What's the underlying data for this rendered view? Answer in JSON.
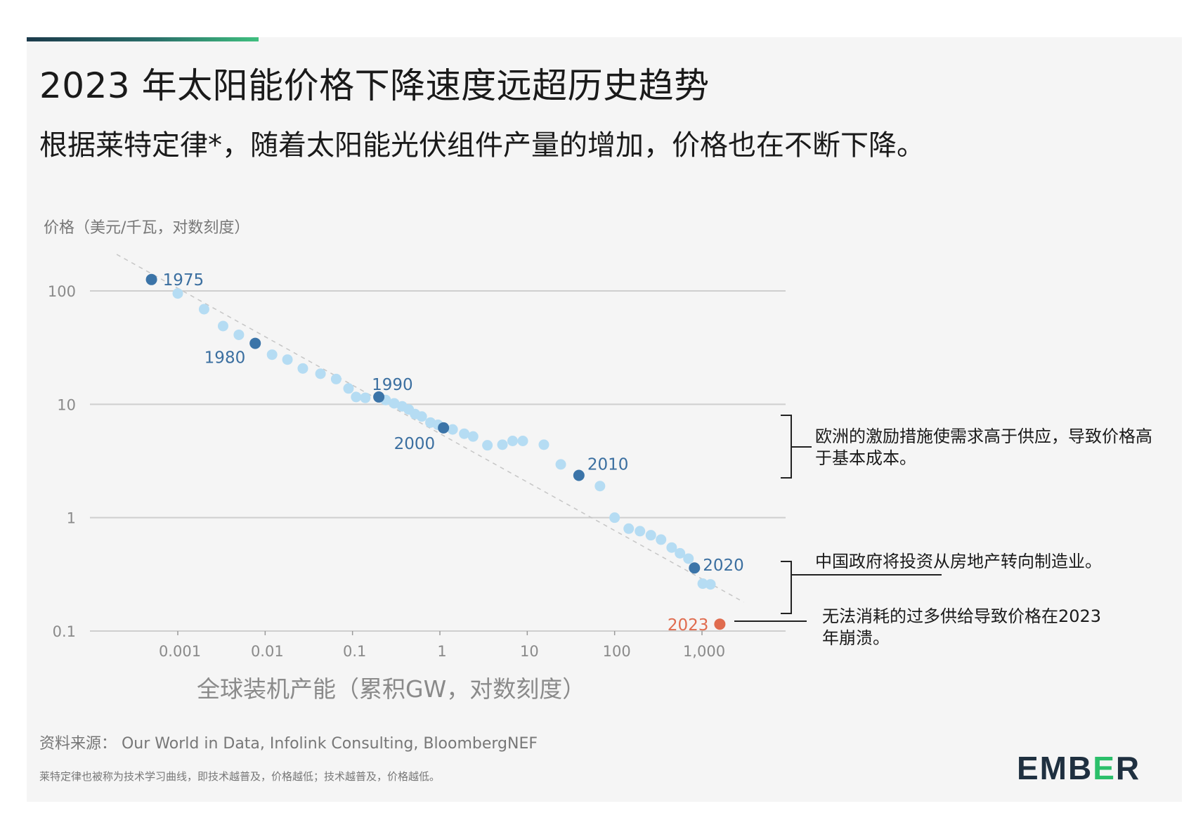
{
  "header": {
    "title": "2023 年太阳能价格下降速度远超历史趋势",
    "subtitle": "根据莱特定律*，随着太阳能光伏组件产量的增加，价格也在不断下降。"
  },
  "annotations": {
    "europe": "欧洲的激励措施使需求高于供应，导致价格高于基本成本。",
    "china": "中国政府将投资从房地产转向制造业。",
    "oversupply": "无法消耗的过多供给导致价格在2023年崩溃。"
  },
  "footer": {
    "source": "资料来源：  Our World in Data, Infolink Consulting, BloombergNEF",
    "footnote": "莱特定律也被称为技术学习曲线，即技术越普及，价格越低；技术越普及，价格越低。",
    "logo_left": "EMB",
    "logo_e": "E",
    "logo_right": "R"
  },
  "colors": {
    "highlight_point": "#3b74a8",
    "regular_point": "#b5dcf3",
    "point_2023": "#e06c4f",
    "year_label": "#3b6fa0",
    "label_2023": "#e06c4f",
    "gridline": "#cfcfcf",
    "trendline": "#c6c6c6"
  },
  "chart_data": {
    "type": "scatter",
    "x_scale": "log",
    "y_scale": "log",
    "ylabel": "价格（美元/千瓦，对数刻度）",
    "xlabel": "全球装机产能（累积GW，对数刻度）",
    "xlim": [
      0.0001,
      10000
    ],
    "ylim": [
      0.1,
      200
    ],
    "y_ticks": [
      {
        "value": 100,
        "label": "100"
      },
      {
        "value": 10,
        "label": "10"
      },
      {
        "value": 1,
        "label": "1"
      },
      {
        "value": 0.1,
        "label": "0.1"
      }
    ],
    "x_ticks": [
      {
        "value": 0.001,
        "label": "0.001"
      },
      {
        "value": 0.01,
        "label": "0.01"
      },
      {
        "value": 0.1,
        "label": "0.1"
      },
      {
        "value": 1,
        "label": "1"
      },
      {
        "value": 10,
        "label": "10"
      },
      {
        "value": 100,
        "label": "100"
      },
      {
        "value": 1000,
        "label": "1,000"
      }
    ],
    "grid": "horizontal",
    "trendline": {
      "x": [
        0.0002,
        3000
      ],
      "y": [
        210,
        0.18
      ]
    },
    "points": [
      {
        "x": 0.0005,
        "y": 126.0,
        "year": "1975",
        "highlight": true
      },
      {
        "x": 0.001,
        "y": 95.0
      },
      {
        "x": 0.002,
        "y": 69.0
      },
      {
        "x": 0.0033,
        "y": 49.0
      },
      {
        "x": 0.005,
        "y": 41.0
      },
      {
        "x": 0.0077,
        "y": 34.5,
        "year": "1980",
        "highlight": true
      },
      {
        "x": 0.012,
        "y": 27.4
      },
      {
        "x": 0.018,
        "y": 24.8
      },
      {
        "x": 0.027,
        "y": 20.7
      },
      {
        "x": 0.043,
        "y": 18.6
      },
      {
        "x": 0.065,
        "y": 16.7
      },
      {
        "x": 0.09,
        "y": 13.8
      },
      {
        "x": 0.11,
        "y": 11.6
      },
      {
        "x": 0.14,
        "y": 11.4
      },
      {
        "x": 0.2,
        "y": 11.6,
        "year": "1990",
        "highlight": true
      },
      {
        "x": 0.24,
        "y": 10.9
      },
      {
        "x": 0.3,
        "y": 10.2
      },
      {
        "x": 0.37,
        "y": 9.6
      },
      {
        "x": 0.44,
        "y": 9.0
      },
      {
        "x": 0.52,
        "y": 8.2
      },
      {
        "x": 0.62,
        "y": 7.8
      },
      {
        "x": 0.78,
        "y": 6.9
      },
      {
        "x": 0.95,
        "y": 6.6
      },
      {
        "x": 1.1,
        "y": 6.2,
        "year": "2000",
        "highlight": true
      },
      {
        "x": 1.4,
        "y": 6.0
      },
      {
        "x": 1.9,
        "y": 5.5
      },
      {
        "x": 2.4,
        "y": 5.2
      },
      {
        "x": 3.5,
        "y": 4.35
      },
      {
        "x": 5.2,
        "y": 4.4
      },
      {
        "x": 6.8,
        "y": 4.75
      },
      {
        "x": 8.9,
        "y": 4.75
      },
      {
        "x": 15.5,
        "y": 4.4
      },
      {
        "x": 24.2,
        "y": 2.95
      },
      {
        "x": 39.0,
        "y": 2.36,
        "year": "2010",
        "highlight": true
      },
      {
        "x": 68.0,
        "y": 1.9
      },
      {
        "x": 100,
        "y": 1.0
      },
      {
        "x": 145,
        "y": 0.8
      },
      {
        "x": 195,
        "y": 0.76
      },
      {
        "x": 260,
        "y": 0.7
      },
      {
        "x": 340,
        "y": 0.64
      },
      {
        "x": 450,
        "y": 0.545
      },
      {
        "x": 560,
        "y": 0.485
      },
      {
        "x": 700,
        "y": 0.435
      },
      {
        "x": 820,
        "y": 0.36,
        "year": "2020",
        "highlight": true
      },
      {
        "x": 1020,
        "y": 0.262
      },
      {
        "x": 1250,
        "y": 0.258
      },
      {
        "x": 1600,
        "y": 0.115,
        "year": "2023",
        "highlight": true,
        "special": true
      }
    ]
  }
}
